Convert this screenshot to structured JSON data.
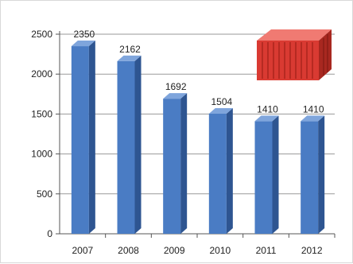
{
  "chart_data": {
    "type": "bar",
    "categories": [
      "2007",
      "2008",
      "2009",
      "2010",
      "2011",
      "2012"
    ],
    "values": [
      2350,
      2162,
      1692,
      1504,
      1410,
      1410
    ],
    "data_labels": [
      "2350",
      "2162",
      "1692",
      "1504",
      "1410",
      "1410"
    ],
    "yticks": [
      "0",
      "500",
      "1000",
      "1500",
      "2000",
      "2500"
    ],
    "ylim": [
      0,
      2500
    ],
    "title": "",
    "xlabel": "",
    "ylabel": "",
    "grid": true,
    "legend": "none",
    "style": "3d-columns"
  },
  "colors": {
    "bar_front": "#4a7cc4",
    "bar_side": "#2e5591",
    "bar_top": "#7fa5dc",
    "grid": "#9a9a9a",
    "container": "#d93a32"
  },
  "decoration": {
    "icon": "shipping-container-icon"
  }
}
